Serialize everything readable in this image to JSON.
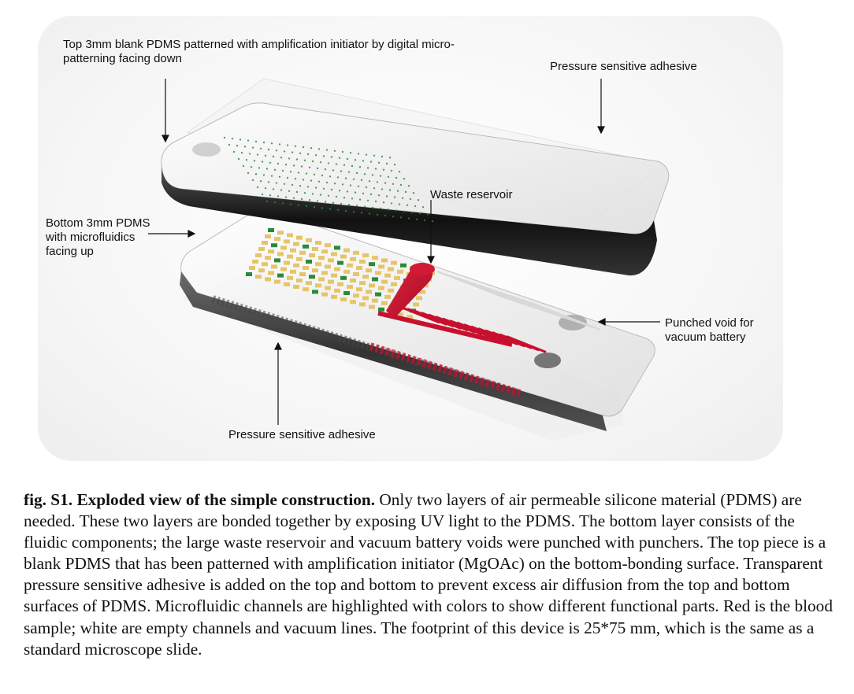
{
  "labels": {
    "top_pdms": "Top 3mm blank PDMS patterned with amplification initiator by digital micro-\npatterning facing down",
    "psa_top": "Pressure sensitive adhesive",
    "waste_reservoir": "Waste reservoir",
    "bottom_pdms": "Bottom 3mm PDMS\nwith microfluidics\nfacing up",
    "punched_void": "Punched void for\nvacuum battery",
    "psa_bottom": "Pressure sensitive adhesive"
  },
  "caption": {
    "title": "fig. S1. Exploded view of the simple construction.",
    "body": " Only two layers of air permeable silicone material (PDMS) are needed. These two layers are bonded together by exposing UV light to the PDMS. The bottom layer consists of the fluidic components; the large waste reservoir and vacuum battery voids were punched with punchers. The top piece is a blank PDMS that has been patterned with amplification initiator (MgOAc) on the bottom-bonding surface. Transparent pressure sensitive adhesive is added on the top and bottom to prevent excess air diffusion from the top and bottom surfaces of PDMS. Microfluidic channels are highlighted with colors to show different functional parts. Red is the blood sample; white are empty channels and vacuum lines. The footprint of this device is 25*75 mm, which is the same as a standard microscope slide."
  },
  "colors": {
    "blood_red": "#c8102e",
    "well_yellow": "#e6c46a",
    "initiator_green": "#2a8a3a",
    "pdms_edge_dark": "#1a1a1a"
  }
}
